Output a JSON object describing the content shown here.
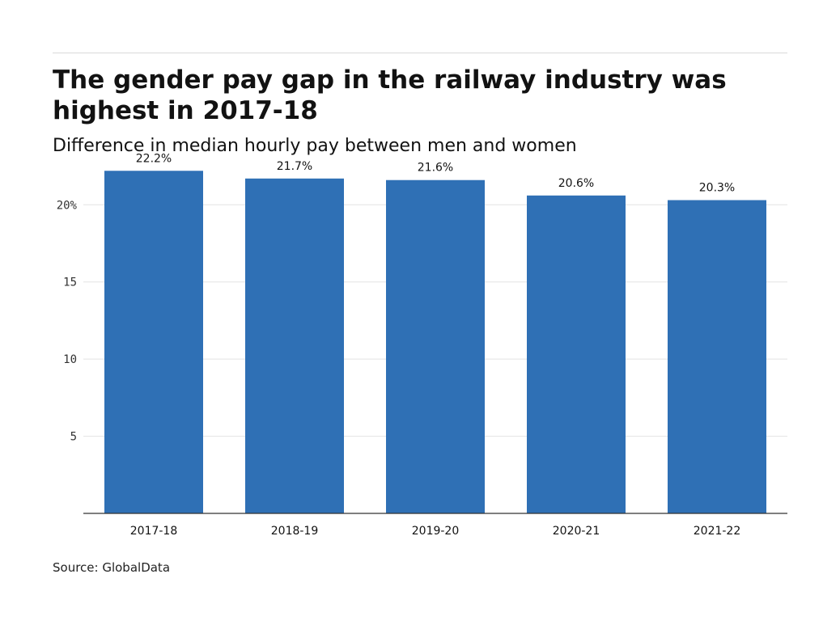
{
  "title": "The gender pay gap in the railway industry was highest in 2017-18",
  "subtitle": "Difference in median hourly pay between men and women",
  "source": "Source: GlobalData",
  "colors": {
    "bar": "#2f70b5",
    "gridline": "#e3e3e3",
    "axis": "#333333",
    "text": "#121212"
  },
  "chart_data": {
    "type": "bar",
    "categories": [
      "2017-18",
      "2018-19",
      "2019-20",
      "2020-21",
      "2021-22"
    ],
    "values": [
      22.2,
      21.7,
      21.6,
      20.6,
      20.3
    ],
    "data_labels": [
      "22.2%",
      "21.7%",
      "21.6%",
      "20.6%",
      "20.3%"
    ],
    "yticks": [
      5,
      10,
      15,
      20
    ],
    "ytick_labels": [
      "5",
      "10",
      "15",
      "20%"
    ],
    "ylim": [
      0,
      23
    ],
    "grid": true,
    "xlabel": "",
    "ylabel": ""
  }
}
